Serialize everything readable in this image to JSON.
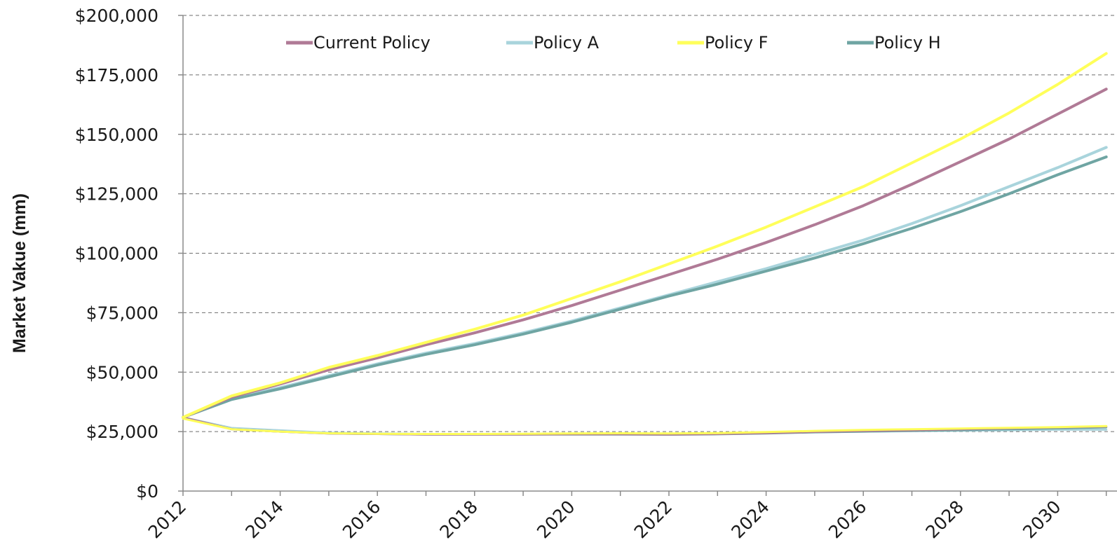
{
  "chart_data": {
    "type": "line",
    "ylabel": "Market Vakue (mm)",
    "xlabel": "",
    "title": "",
    "xlim": [
      2012,
      2031
    ],
    "ylim": [
      0,
      200000
    ],
    "x_ticks": [
      2012,
      2014,
      2016,
      2018,
      2020,
      2022,
      2024,
      2026,
      2028,
      2030
    ],
    "x_tick_labels": [
      "2012",
      "2014",
      "2016",
      "2018",
      "2020",
      "2022",
      "2024",
      "2026",
      "2028",
      "2030"
    ],
    "y_ticks": [
      0,
      25000,
      50000,
      75000,
      100000,
      125000,
      150000,
      175000,
      200000
    ],
    "y_tick_labels": [
      "$0",
      "$25,000",
      "$50,000",
      "$75,000",
      "$100,000",
      "$125,000",
      "$150,000",
      "$175,000",
      "$200,000"
    ],
    "grid": "horizontal dashed",
    "legend_position": "top",
    "x": [
      2012,
      2013,
      2014,
      2015,
      2016,
      2017,
      2018,
      2019,
      2020,
      2021,
      2022,
      2023,
      2024,
      2025,
      2026,
      2027,
      2028,
      2029,
      2030,
      2031
    ],
    "series": [
      {
        "name": "Current Policy",
        "color": "#b07a96",
        "values": [
          31000,
          39500,
          45000,
          51000,
          56000,
          61500,
          66500,
          72000,
          78000,
          84500,
          91000,
          97500,
          104500,
          112000,
          120000,
          129000,
          138500,
          148000,
          158500,
          169000
        ]
      },
      {
        "name": "Policy A",
        "color": "#a9d4dc",
        "values": [
          31000,
          39000,
          43500,
          48500,
          53500,
          58000,
          62000,
          66500,
          71500,
          77000,
          82500,
          88000,
          93500,
          99500,
          105500,
          112500,
          120000,
          128000,
          136000,
          144500
        ]
      },
      {
        "name": "Policy F",
        "color": "#ffff5a",
        "values": [
          31000,
          40000,
          45500,
          52000,
          57000,
          62500,
          68000,
          74000,
          81000,
          88000,
          95500,
          103000,
          111000,
          119500,
          128000,
          138000,
          148000,
          159000,
          171000,
          184000
        ]
      },
      {
        "name": "Policy H",
        "color": "#6fa5a3",
        "values": [
          31000,
          38500,
          43000,
          48000,
          53000,
          57500,
          61500,
          66000,
          71000,
          76500,
          82000,
          87000,
          92500,
          98000,
          104000,
          110500,
          117500,
          125000,
          133000,
          140500
        ]
      }
    ],
    "lower_series": [
      {
        "color": "#a9d4dc",
        "values": [
          31000,
          26500,
          25500,
          24500,
          24200,
          24000,
          24000,
          24000,
          24000,
          24000,
          23800,
          24000,
          24300,
          24800,
          25000,
          25200,
          25400,
          25600,
          25800,
          25800
        ]
      },
      {
        "color": "#6fa5a3",
        "values": [
          31000,
          26000,
          25000,
          24200,
          24000,
          23800,
          23800,
          23800,
          23800,
          23800,
          23700,
          23900,
          24200,
          24700,
          25000,
          25300,
          25600,
          26000,
          26400,
          26800
        ]
      },
      {
        "color": "#b07a96",
        "values": [
          31000,
          26000,
          25000,
          24200,
          24000,
          23800,
          23800,
          23800,
          23900,
          23900,
          23800,
          24000,
          24400,
          24900,
          25300,
          25600,
          26000,
          26400,
          26800,
          27200
        ]
      },
      {
        "color": "#ffff5a",
        "values": [
          30500,
          26000,
          25000,
          24300,
          24100,
          24000,
          24000,
          24100,
          24200,
          24300,
          24200,
          24400,
          24800,
          25300,
          25700,
          26000,
          26300,
          26600,
          26900,
          27300
        ]
      }
    ]
  }
}
